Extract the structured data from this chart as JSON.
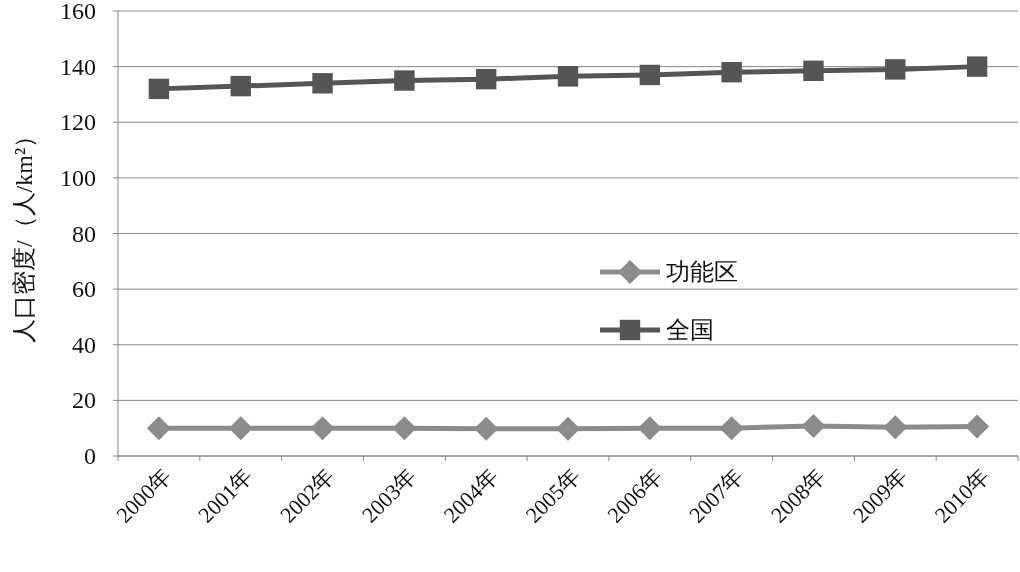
{
  "chart_data": {
    "type": "line",
    "ylabel": "人口密度/（人/km²）",
    "categories": [
      "2000年",
      "2001年",
      "2002年",
      "2003年",
      "2004年",
      "2005年",
      "2006年",
      "2007年",
      "2008年",
      "2009年",
      "2010年"
    ],
    "series": [
      {
        "name": "功能区",
        "color": "#8c8c8c",
        "marker": "diamond",
        "values": [
          10,
          10,
          10,
          10,
          9.8,
          9.8,
          10,
          10,
          10.8,
          10.3,
          10.6
        ]
      },
      {
        "name": "全国",
        "color": "#555555",
        "marker": "square",
        "values": [
          132,
          133,
          134,
          135,
          135.5,
          136.5,
          137,
          138,
          138.5,
          139,
          140
        ]
      }
    ],
    "ylim": [
      0,
      160
    ],
    "yticks": [
      0,
      20,
      40,
      60,
      80,
      100,
      120,
      140,
      160
    ],
    "grid": "y",
    "legend": "right",
    "line_style": "solid"
  }
}
